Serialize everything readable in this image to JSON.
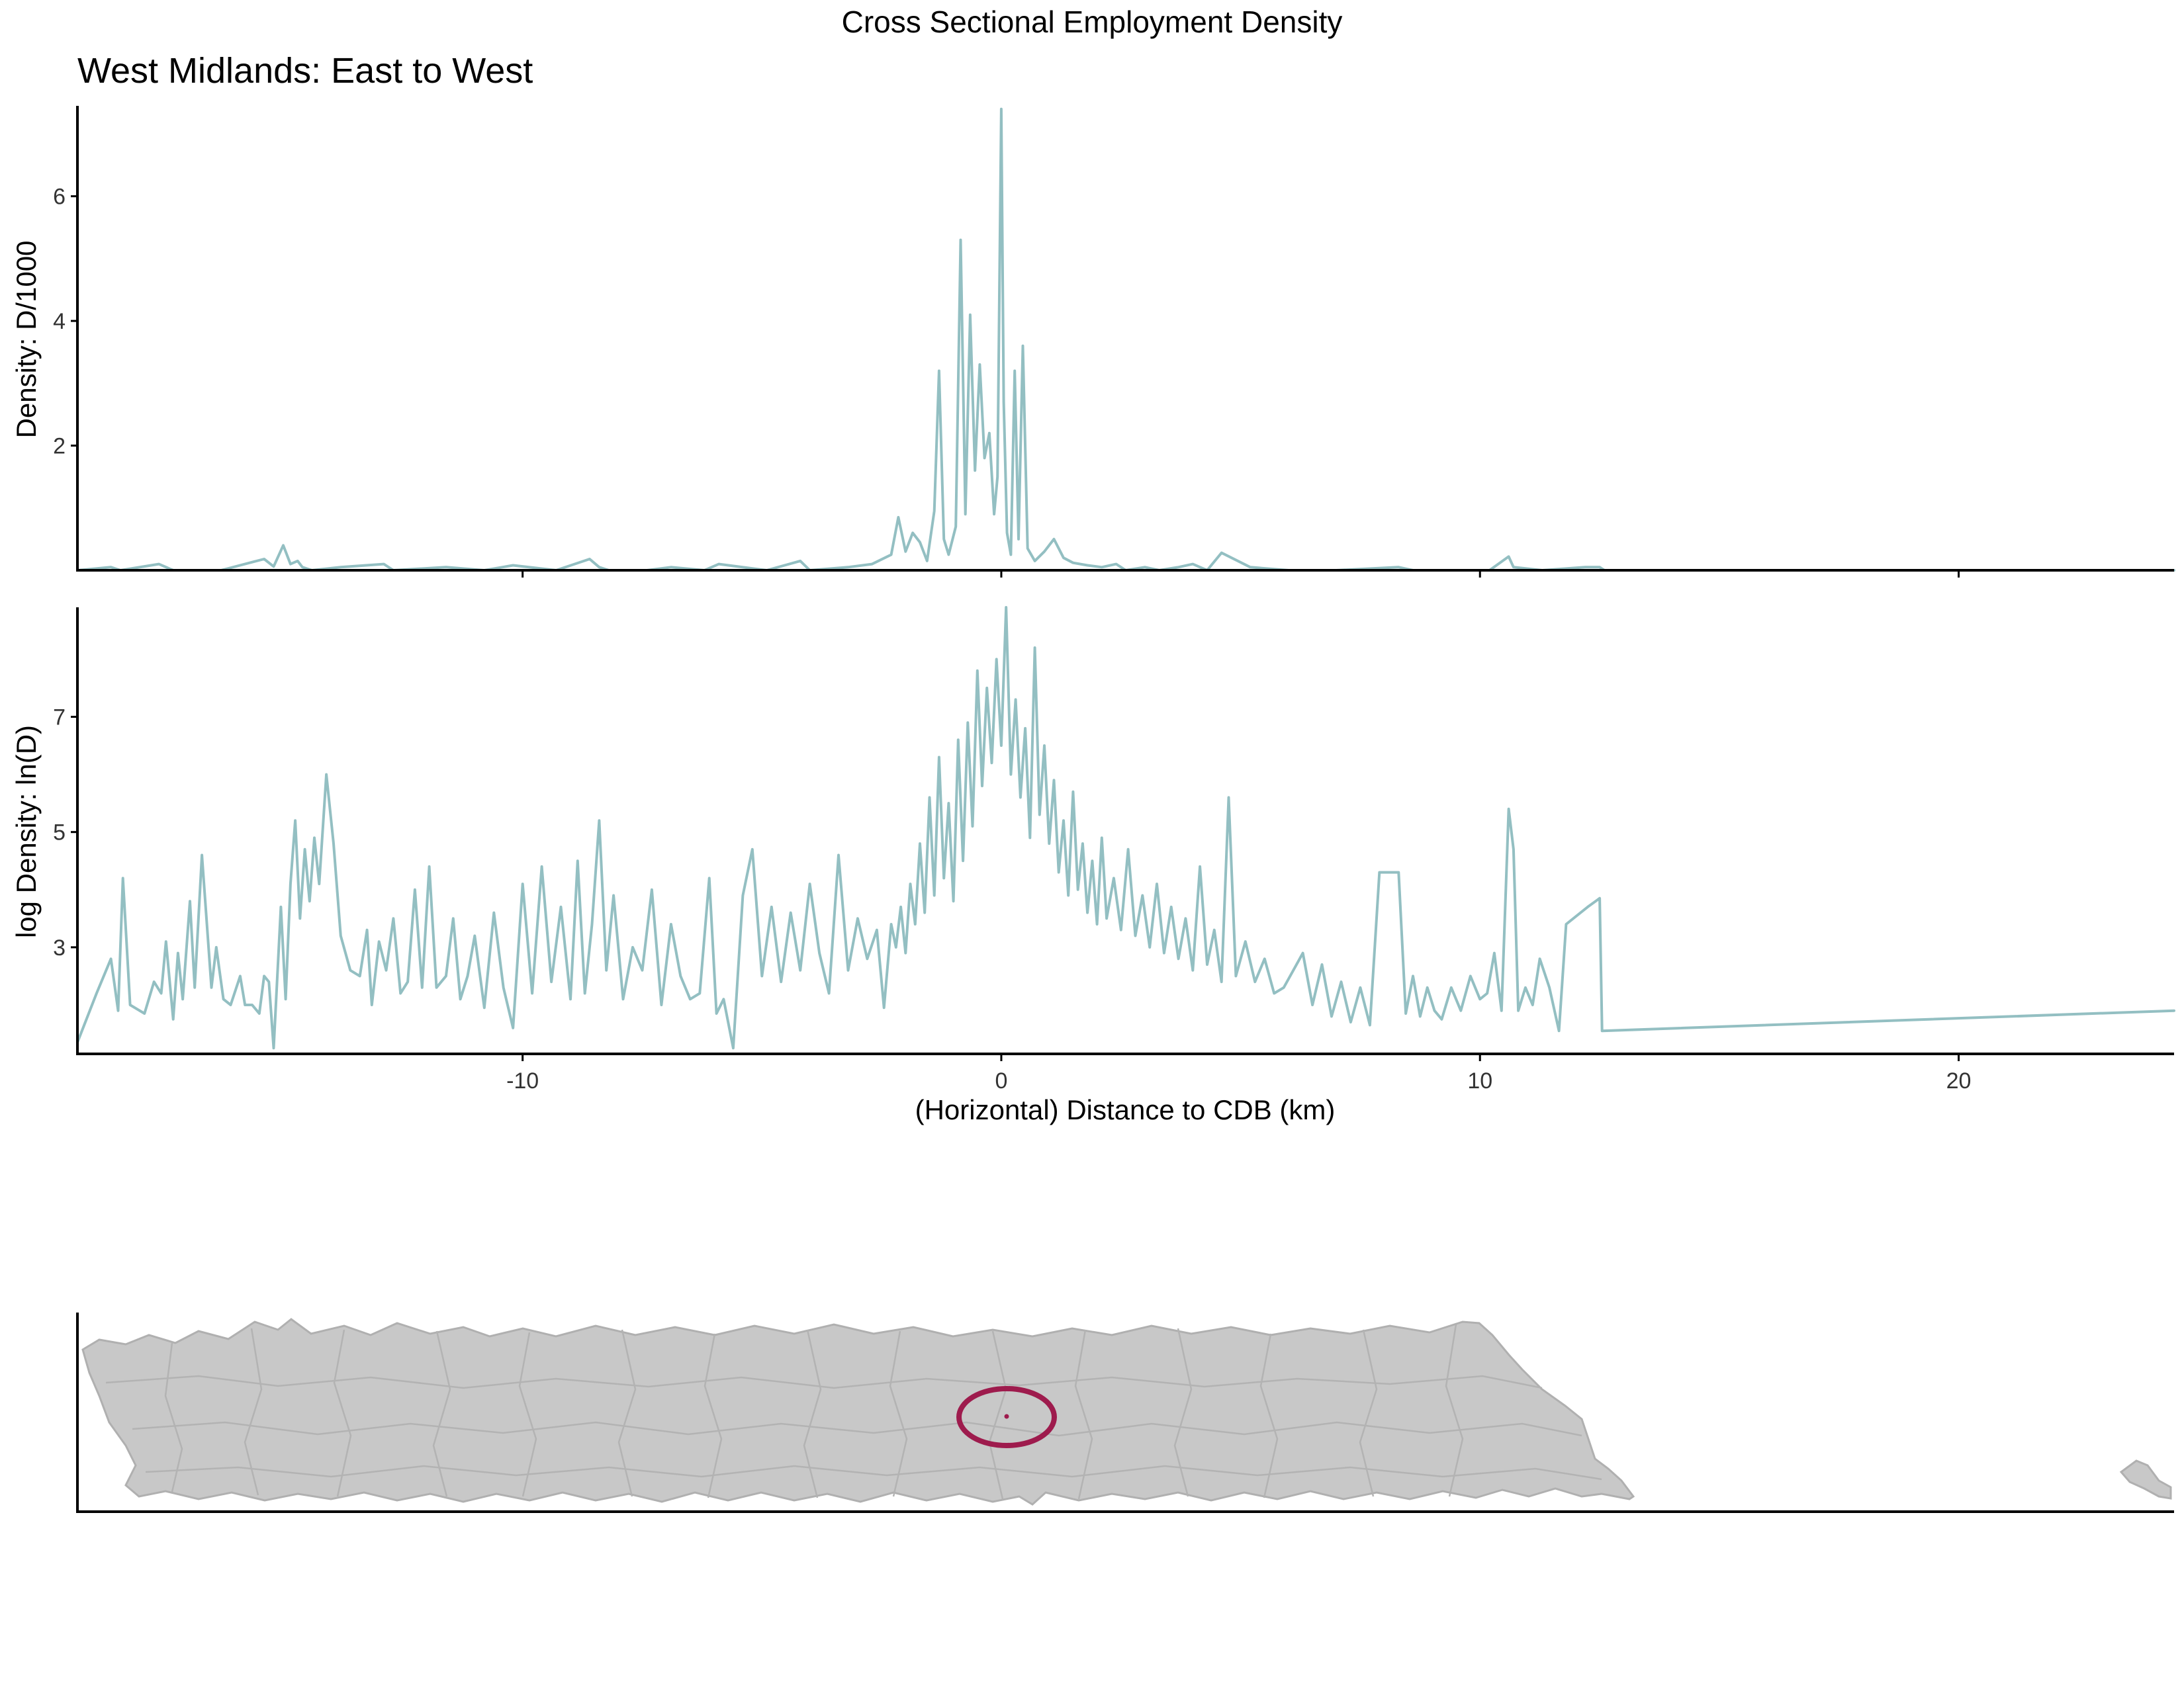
{
  "figure": {
    "title": "Cross Sectional Employment Density",
    "subtitle": "West Midlands: East to West"
  },
  "colors": {
    "line": "#93bfc2",
    "map_fill": "#c8c8c8",
    "map_border": "#b0b0b0",
    "highlight": "#9e1b4d"
  },
  "chart_data": [
    {
      "type": "line",
      "panel": "top",
      "ylabel": "Density: D/1000",
      "xlabel": "",
      "xlim": [
        -19.3,
        24.5
      ],
      "ylim": [
        0,
        7.45
      ],
      "yticks": [
        2,
        4,
        6
      ],
      "ytick_labels": [
        "2",
        "4",
        "6"
      ],
      "xticks": [
        -10,
        0,
        10,
        20
      ],
      "show_xtick_labels": false,
      "grid": false,
      "series": [
        {
          "x": [
            -19.3,
            -18.6,
            -18.4,
            -17.6,
            -17.3,
            -16.3,
            -15.4,
            -15.2,
            -15.0,
            -14.85,
            -14.7,
            -14.6,
            -14.4,
            -13.8,
            -12.9,
            -12.7,
            -11.6,
            -10.8,
            -10.2,
            -9.3,
            -8.6,
            -8.4,
            -8.2,
            -7.4,
            -6.9,
            -6.2,
            -5.9,
            -4.9,
            -4.2,
            -4.0,
            -3.2,
            -2.7,
            -2.3,
            -2.15,
            -2.0,
            -1.85,
            -1.7,
            -1.55,
            -1.4,
            -1.3,
            -1.2,
            -1.1,
            -0.95,
            -0.85,
            -0.75,
            -0.65,
            -0.55,
            -0.45,
            -0.35,
            -0.25,
            -0.15,
            -0.08,
            0.0,
            0.05,
            0.12,
            0.2,
            0.28,
            0.36,
            0.45,
            0.55,
            0.7,
            0.9,
            1.1,
            1.3,
            1.5,
            1.8,
            2.1,
            2.4,
            2.6,
            3.0,
            3.3,
            3.7,
            4.0,
            4.3,
            4.6,
            5.2,
            6.0,
            7.0,
            8.3,
            8.6,
            9.2,
            10.2,
            10.6,
            10.7,
            11.3,
            12.2,
            12.5,
            12.6,
            24.5
          ],
          "y": [
            0.0,
            0.05,
            0.0,
            0.1,
            0.0,
            0.0,
            0.18,
            0.06,
            0.4,
            0.1,
            0.15,
            0.05,
            0.0,
            0.05,
            0.1,
            0.0,
            0.05,
            0.0,
            0.08,
            0.0,
            0.18,
            0.05,
            0.0,
            0.0,
            0.05,
            0.0,
            0.1,
            0.0,
            0.15,
            0.0,
            0.05,
            0.1,
            0.25,
            0.85,
            0.3,
            0.6,
            0.45,
            0.15,
            0.95,
            3.2,
            0.5,
            0.25,
            0.7,
            5.3,
            0.9,
            4.1,
            1.6,
            3.3,
            1.8,
            2.2,
            0.9,
            1.5,
            7.4,
            2.7,
            0.6,
            0.25,
            3.2,
            0.5,
            3.6,
            0.35,
            0.15,
            0.3,
            0.5,
            0.2,
            0.12,
            0.08,
            0.05,
            0.1,
            0.0,
            0.05,
            0.0,
            0.05,
            0.1,
            0.0,
            0.28,
            0.05,
            0.0,
            0.0,
            0.05,
            0.0,
            0.0,
            0.0,
            0.22,
            0.05,
            0.0,
            0.05,
            0.05,
            0.0,
            0.0
          ]
        }
      ]
    },
    {
      "type": "line",
      "panel": "bottom",
      "ylabel": "log Density: ln(D)",
      "xlabel": "(Horizontal) Distance to CDB (km)",
      "xlim": [
        -19.3,
        24.5
      ],
      "ylim": [
        1.15,
        8.9
      ],
      "yticks": [
        3,
        5,
        7
      ],
      "ytick_labels": [
        "3",
        "5",
        "7"
      ],
      "xticks": [
        -10,
        0,
        10,
        20
      ],
      "xtick_labels": [
        "-10",
        "0",
        "10",
        "20"
      ],
      "grid": false,
      "series": [
        {
          "x": [
            -19.3,
            -18.9,
            -18.6,
            -18.45,
            -18.35,
            -18.2,
            -17.9,
            -17.7,
            -17.55,
            -17.45,
            -17.3,
            -17.2,
            -17.1,
            -16.95,
            -16.85,
            -16.7,
            -16.5,
            -16.4,
            -16.25,
            -16.1,
            -15.9,
            -15.8,
            -15.65,
            -15.5,
            -15.4,
            -15.3,
            -15.2,
            -15.05,
            -14.95,
            -14.85,
            -14.75,
            -14.65,
            -14.55,
            -14.45,
            -14.35,
            -14.25,
            -14.1,
            -13.95,
            -13.8,
            -13.6,
            -13.4,
            -13.25,
            -13.15,
            -13.0,
            -12.85,
            -12.7,
            -12.55,
            -12.4,
            -12.25,
            -12.1,
            -11.95,
            -11.8,
            -11.6,
            -11.45,
            -11.3,
            -11.15,
            -11.0,
            -10.8,
            -10.6,
            -10.4,
            -10.2,
            -10.0,
            -9.8,
            -9.6,
            -9.4,
            -9.2,
            -9.0,
            -8.85,
            -8.7,
            -8.55,
            -8.4,
            -8.25,
            -8.1,
            -7.9,
            -7.7,
            -7.5,
            -7.3,
            -7.1,
            -6.9,
            -6.7,
            -6.5,
            -6.3,
            -6.1,
            -5.95,
            -5.8,
            -5.6,
            -5.4,
            -5.2,
            -5.0,
            -4.8,
            -4.6,
            -4.4,
            -4.2,
            -4.0,
            -3.8,
            -3.6,
            -3.4,
            -3.2,
            -3.0,
            -2.8,
            -2.6,
            -2.45,
            -2.3,
            -2.2,
            -2.1,
            -2.0,
            -1.9,
            -1.8,
            -1.7,
            -1.6,
            -1.5,
            -1.4,
            -1.3,
            -1.2,
            -1.1,
            -1.0,
            -0.9,
            -0.8,
            -0.7,
            -0.6,
            -0.5,
            -0.4,
            -0.3,
            -0.2,
            -0.1,
            0.0,
            0.1,
            0.2,
            0.3,
            0.4,
            0.5,
            0.6,
            0.7,
            0.8,
            0.9,
            1.0,
            1.1,
            1.2,
            1.3,
            1.4,
            1.5,
            1.6,
            1.7,
            1.8,
            1.9,
            2.0,
            2.1,
            2.2,
            2.35,
            2.5,
            2.65,
            2.8,
            2.95,
            3.1,
            3.25,
            3.4,
            3.55,
            3.7,
            3.85,
            4.0,
            4.15,
            4.3,
            4.45,
            4.6,
            4.75,
            4.9,
            5.1,
            5.3,
            5.5,
            5.7,
            5.9,
            6.1,
            6.3,
            6.5,
            6.7,
            6.9,
            7.1,
            7.3,
            7.5,
            7.7,
            7.9,
            8.05,
            8.3,
            8.45,
            8.6,
            8.75,
            8.9,
            9.05,
            9.2,
            9.4,
            9.6,
            9.8,
            10.0,
            10.15,
            10.3,
            10.45,
            10.6,
            10.7,
            10.8,
            10.95,
            11.1,
            11.25,
            11.45,
            11.65,
            11.8,
            12.25,
            12.5,
            12.55,
            24.5
          ],
          "y": [
            1.35,
            2.2,
            2.8,
            1.9,
            4.2,
            2.0,
            1.85,
            2.4,
            2.2,
            3.1,
            1.75,
            2.9,
            2.1,
            3.8,
            2.3,
            4.6,
            2.3,
            3.0,
            2.1,
            2.0,
            2.5,
            2.0,
            2.0,
            1.85,
            2.5,
            2.4,
            1.25,
            3.7,
            2.1,
            4.1,
            5.2,
            3.5,
            4.7,
            3.8,
            4.9,
            4.1,
            6.0,
            4.8,
            3.2,
            2.6,
            2.5,
            3.3,
            2.0,
            3.1,
            2.6,
            3.5,
            2.2,
            2.4,
            4.0,
            2.3,
            4.4,
            2.3,
            2.5,
            3.5,
            2.1,
            2.5,
            3.2,
            1.95,
            3.6,
            2.3,
            1.6,
            4.1,
            2.2,
            4.4,
            2.4,
            3.7,
            2.1,
            4.5,
            2.2,
            3.4,
            5.2,
            2.6,
            3.9,
            2.1,
            3.0,
            2.6,
            4.0,
            2.0,
            3.4,
            2.5,
            2.1,
            2.2,
            4.2,
            1.85,
            2.1,
            1.25,
            3.9,
            4.7,
            2.5,
            3.7,
            2.4,
            3.6,
            2.6,
            4.1,
            2.9,
            2.2,
            4.6,
            2.6,
            3.5,
            2.8,
            3.3,
            1.95,
            3.4,
            3.0,
            3.7,
            2.9,
            4.1,
            3.4,
            4.8,
            3.6,
            5.6,
            3.9,
            6.3,
            4.2,
            5.5,
            3.8,
            6.6,
            4.5,
            6.9,
            5.1,
            7.8,
            5.8,
            7.5,
            6.2,
            8.0,
            6.5,
            8.9,
            6.0,
            7.3,
            5.6,
            6.8,
            4.9,
            8.2,
            5.3,
            6.5,
            4.8,
            5.9,
            4.3,
            5.2,
            3.9,
            5.7,
            4.0,
            4.8,
            3.6,
            4.5,
            3.4,
            4.9,
            3.5,
            4.2,
            3.3,
            4.7,
            3.2,
            3.9,
            3.0,
            4.1,
            2.9,
            3.7,
            2.8,
            3.5,
            2.6,
            4.4,
            2.7,
            3.3,
            2.4,
            5.6,
            2.5,
            3.1,
            2.4,
            2.8,
            2.2,
            2.3,
            2.6,
            2.9,
            2.0,
            2.7,
            1.8,
            2.4,
            1.7,
            2.3,
            1.65,
            4.3,
            4.3,
            4.3,
            1.85,
            2.5,
            1.8,
            2.3,
            1.9,
            1.75,
            2.3,
            1.9,
            2.5,
            2.1,
            2.2,
            2.9,
            1.9,
            5.4,
            4.7,
            1.9,
            2.3,
            2.0,
            2.8,
            2.3,
            1.55,
            3.4,
            3.7,
            3.85,
            1.55,
            1.9
          ]
        }
      ]
    }
  ],
  "map": {
    "highlight_shape": "ellipse",
    "center_marker": true
  }
}
